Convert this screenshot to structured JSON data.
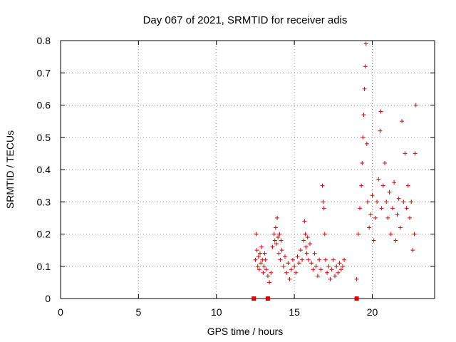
{
  "chart_data": {
    "type": "scatter",
    "title": "Day 067 of 2021, SRMTID for receiver adis",
    "xlabel": "GPS time / hours",
    "ylabel": "SRMTID / TECUs",
    "xlim": [
      0,
      24
    ],
    "ylim": [
      0,
      0.8
    ],
    "xticks": [
      0,
      5,
      10,
      15,
      20
    ],
    "xtick_labels": [
      "0",
      "5",
      "10",
      "15",
      "20"
    ],
    "yticks": [
      0,
      0.1,
      0.2,
      0.3,
      0.4,
      0.5,
      0.6,
      0.7,
      0.8
    ],
    "ytick_labels": [
      "0",
      "0.1",
      "0.2",
      "0.3",
      "0.4",
      "0.5",
      "0.6",
      "0.7",
      "0.8"
    ],
    "grid": true,
    "marker": "+",
    "color": "#dd0000",
    "series": [
      {
        "name": "SRMTID",
        "x": [
          12.5,
          12.55,
          12.6,
          12.65,
          12.7,
          12.75,
          12.8,
          12.85,
          12.9,
          12.95,
          13.0,
          13.05,
          13.1,
          13.15,
          13.2,
          13.3,
          13.4,
          13.5,
          13.6,
          13.7,
          13.75,
          13.8,
          13.85,
          13.9,
          13.95,
          14.0,
          14.05,
          14.1,
          14.15,
          14.2,
          14.3,
          14.4,
          14.5,
          14.6,
          14.7,
          14.8,
          14.9,
          15.0,
          15.1,
          15.2,
          15.3,
          15.4,
          15.5,
          15.6,
          15.65,
          15.7,
          15.75,
          15.8,
          15.85,
          15.9,
          16.0,
          16.1,
          16.2,
          16.3,
          16.4,
          16.5,
          16.6,
          16.7,
          16.8,
          16.85,
          16.9,
          16.95,
          17.0,
          17.1,
          17.2,
          17.3,
          17.4,
          17.5,
          17.6,
          17.7,
          17.8,
          17.9,
          18.0,
          18.1,
          18.2,
          19.0,
          19.1,
          19.2,
          19.3,
          19.35,
          19.4,
          19.45,
          19.5,
          19.55,
          19.6,
          19.65,
          19.7,
          19.8,
          19.9,
          20.0,
          20.1,
          20.2,
          20.3,
          20.4,
          20.5,
          20.55,
          20.6,
          20.7,
          20.8,
          20.9,
          21.0,
          21.1,
          21.2,
          21.3,
          21.4,
          21.5,
          21.6,
          21.7,
          21.8,
          21.9,
          22.0,
          22.1,
          22.2,
          22.3,
          22.4,
          22.5,
          22.6,
          22.7,
          22.75,
          22.8
        ],
        "y": [
          0.12,
          0.2,
          0.15,
          0.1,
          0.13,
          0.09,
          0.14,
          0.11,
          0.16,
          0.12,
          0.08,
          0.1,
          0.14,
          0.12,
          0.09,
          0.07,
          0.05,
          0.08,
          0.16,
          0.2,
          0.18,
          0.22,
          0.17,
          0.25,
          0.19,
          0.14,
          0.2,
          0.12,
          0.18,
          0.15,
          0.1,
          0.13,
          0.08,
          0.11,
          0.06,
          0.09,
          0.12,
          0.1,
          0.08,
          0.13,
          0.11,
          0.15,
          0.12,
          0.18,
          0.24,
          0.2,
          0.16,
          0.14,
          0.19,
          0.12,
          0.17,
          0.11,
          0.09,
          0.14,
          0.1,
          0.07,
          0.12,
          0.09,
          0.35,
          0.3,
          0.28,
          0.2,
          0.12,
          0.08,
          0.1,
          0.06,
          0.09,
          0.12,
          0.07,
          0.1,
          0.08,
          0.11,
          0.09,
          0.1,
          0.12,
          0.06,
          0.2,
          0.28,
          0.35,
          0.42,
          0.5,
          0.57,
          0.65,
          0.72,
          0.79,
          0.48,
          0.3,
          0.22,
          0.26,
          0.32,
          0.18,
          0.25,
          0.3,
          0.37,
          0.52,
          0.58,
          0.28,
          0.35,
          0.42,
          0.3,
          0.25,
          0.33,
          0.2,
          0.28,
          0.36,
          0.18,
          0.26,
          0.31,
          0.22,
          0.55,
          0.3,
          0.45,
          0.28,
          0.35,
          0.25,
          0.3,
          0.15,
          0.2,
          0.45,
          0.6
        ]
      }
    ],
    "gap_markers_x": [
      12.4,
      13.3,
      19.0
    ]
  }
}
